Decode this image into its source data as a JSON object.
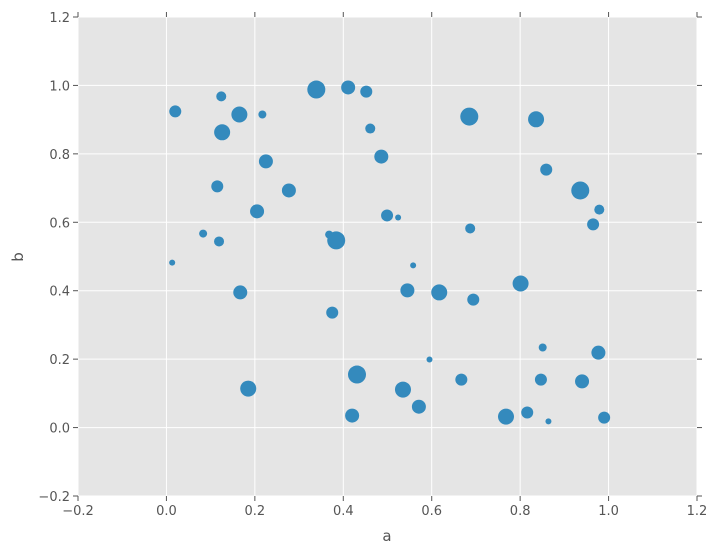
{
  "chart_data": {
    "type": "scatter",
    "title": "",
    "xlabel": "a",
    "ylabel": "b",
    "xlim": [
      -0.2,
      1.2
    ],
    "ylim": [
      -0.2,
      1.2
    ],
    "xticks": [
      "−0.2",
      "0.0",
      "0.2",
      "0.4",
      "0.6",
      "0.8",
      "1.0",
      "1.2"
    ],
    "yticks": [
      "−0.2",
      "0.0",
      "0.2",
      "0.4",
      "0.6",
      "0.8",
      "1.0",
      "1.2"
    ],
    "grid": true,
    "colors": {
      "background": "#e5e5e5",
      "grid": "#ffffff",
      "marker": "#348abd"
    },
    "points": [
      {
        "x": 0.02,
        "y": 0.924,
        "size": 6
      },
      {
        "x": 0.124,
        "y": 0.968,
        "size": 5
      },
      {
        "x": 0.165,
        "y": 0.915,
        "size": 8
      },
      {
        "x": 0.217,
        "y": 0.915,
        "size": 4
      },
      {
        "x": 0.126,
        "y": 0.863,
        "size": 8
      },
      {
        "x": 0.225,
        "y": 0.778,
        "size": 7
      },
      {
        "x": 0.115,
        "y": 0.705,
        "size": 6
      },
      {
        "x": 0.277,
        "y": 0.693,
        "size": 7
      },
      {
        "x": 0.205,
        "y": 0.632,
        "size": 7
      },
      {
        "x": 0.083,
        "y": 0.567,
        "size": 4
      },
      {
        "x": 0.119,
        "y": 0.544,
        "size": 5
      },
      {
        "x": 0.013,
        "y": 0.482,
        "size": 3
      },
      {
        "x": 0.167,
        "y": 0.395,
        "size": 7
      },
      {
        "x": 0.339,
        "y": 0.988,
        "size": 9
      },
      {
        "x": 0.411,
        "y": 0.994,
        "size": 7
      },
      {
        "x": 0.452,
        "y": 0.982,
        "size": 6
      },
      {
        "x": 0.461,
        "y": 0.874,
        "size": 5
      },
      {
        "x": 0.486,
        "y": 0.792,
        "size": 7
      },
      {
        "x": 0.499,
        "y": 0.62,
        "size": 6
      },
      {
        "x": 0.524,
        "y": 0.614,
        "size": 3
      },
      {
        "x": 0.368,
        "y": 0.564,
        "size": 4
      },
      {
        "x": 0.384,
        "y": 0.547,
        "size": 9
      },
      {
        "x": 0.558,
        "y": 0.474,
        "size": 3
      },
      {
        "x": 0.545,
        "y": 0.401,
        "size": 7
      },
      {
        "x": 0.617,
        "y": 0.395,
        "size": 8
      },
      {
        "x": 0.375,
        "y": 0.336,
        "size": 6
      },
      {
        "x": 0.595,
        "y": 0.199,
        "size": 3
      },
      {
        "x": 0.431,
        "y": 0.155,
        "size": 9
      },
      {
        "x": 0.185,
        "y": 0.114,
        "size": 8
      },
      {
        "x": 0.535,
        "y": 0.111,
        "size": 8
      },
      {
        "x": 0.42,
        "y": 0.035,
        "size": 7
      },
      {
        "x": 0.571,
        "y": 0.061,
        "size": 7
      },
      {
        "x": 0.685,
        "y": 0.909,
        "size": 9
      },
      {
        "x": 0.687,
        "y": 0.582,
        "size": 5
      },
      {
        "x": 0.694,
        "y": 0.374,
        "size": 6
      },
      {
        "x": 0.667,
        "y": 0.14,
        "size": 6
      },
      {
        "x": 0.836,
        "y": 0.901,
        "size": 8
      },
      {
        "x": 0.859,
        "y": 0.754,
        "size": 6
      },
      {
        "x": 0.936,
        "y": 0.693,
        "size": 9
      },
      {
        "x": 0.979,
        "y": 0.637,
        "size": 5
      },
      {
        "x": 0.965,
        "y": 0.594,
        "size": 6
      },
      {
        "x": 0.801,
        "y": 0.421,
        "size": 8
      },
      {
        "x": 0.851,
        "y": 0.234,
        "size": 4
      },
      {
        "x": 0.977,
        "y": 0.219,
        "size": 7
      },
      {
        "x": 0.847,
        "y": 0.14,
        "size": 6
      },
      {
        "x": 0.94,
        "y": 0.135,
        "size": 7
      },
      {
        "x": 0.768,
        "y": 0.032,
        "size": 8
      },
      {
        "x": 0.816,
        "y": 0.044,
        "size": 6
      },
      {
        "x": 0.864,
        "y": 0.018,
        "size": 3
      },
      {
        "x": 0.99,
        "y": 0.029,
        "size": 6
      }
    ]
  }
}
